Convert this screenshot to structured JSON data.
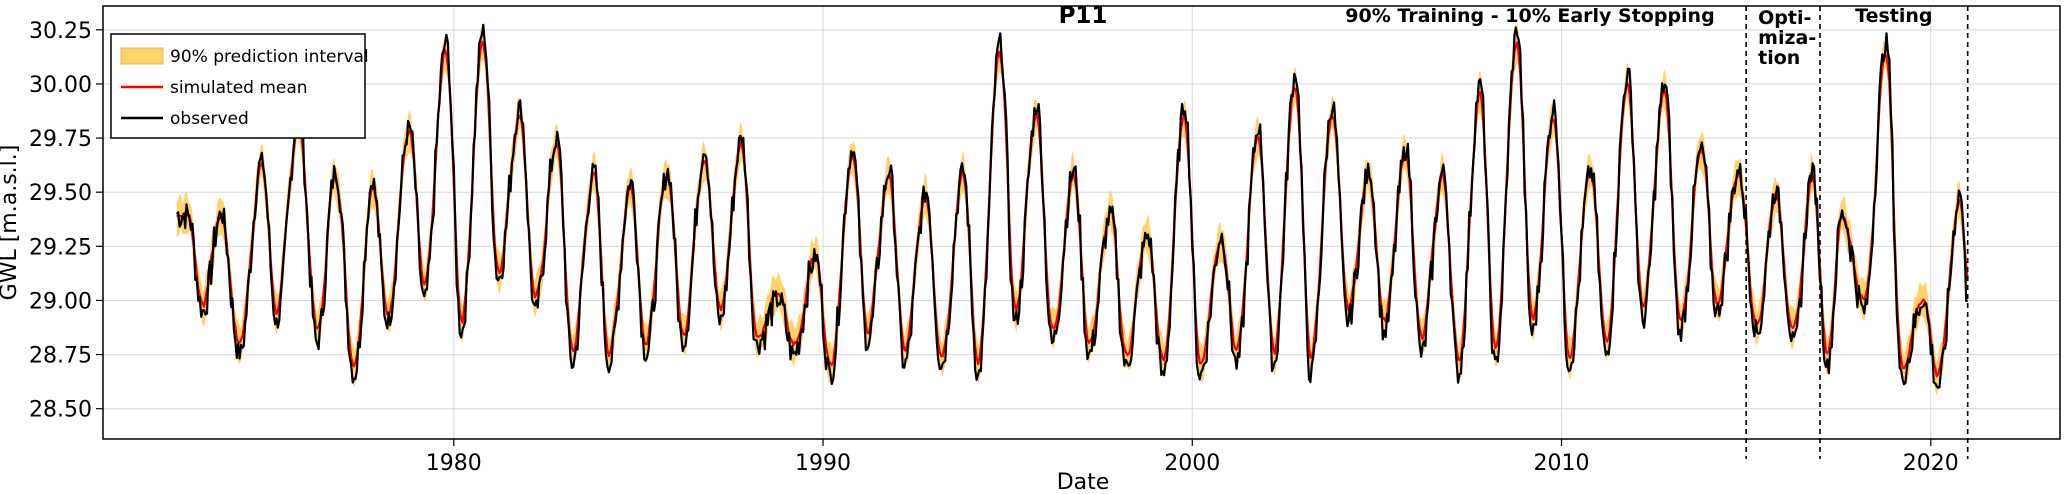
{
  "chart_data": {
    "type": "line",
    "title": "P11",
    "xlabel": "Date",
    "ylabel": "GWL [m.a.s.l.]",
    "xlim": [
      1970.5,
      2023.5
    ],
    "ylim": [
      28.36,
      30.36
    ],
    "x_ticks": [
      1980,
      1990,
      2000,
      2010,
      2020
    ],
    "y_ticks": [
      28.5,
      28.75,
      29.0,
      29.25,
      29.5,
      29.75,
      30.0,
      30.25
    ],
    "y_tick_labels": [
      "28.50",
      "28.75",
      "29.00",
      "29.25",
      "29.50",
      "29.75",
      "30.00",
      "30.25"
    ],
    "grid": true,
    "legend": {
      "position": "top-left",
      "entries": [
        {
          "label": "90% prediction interval",
          "color": "#FFD36B",
          "kind": "patch"
        },
        {
          "label": "simulated mean",
          "color": "#FF0000",
          "kind": "line"
        },
        {
          "label": "observed",
          "color": "#000000",
          "kind": "line"
        }
      ]
    },
    "regions": [
      {
        "label": "90% Training - 10% Early Stopping",
        "start": 1972.5,
        "end": 2015.0
      },
      {
        "label_lines": [
          "Opti-",
          "miza-",
          "tion"
        ],
        "start": 2015.0,
        "end": 2017.0
      },
      {
        "label": "Testing",
        "start": 2017.0,
        "end": 2021.0
      }
    ],
    "boundaries": [
      2015.0,
      2017.0,
      2021.0
    ],
    "series_colors": {
      "interval": "#FFD36B",
      "simulated": "#FF0000",
      "observed": "#000000"
    },
    "observed_annual": {
      "x": [
        1972.8,
        1973.2,
        1973.7,
        1974.2,
        1974.8,
        1975.2,
        1975.8,
        1976.3,
        1976.8,
        1977.3,
        1977.8,
        1978.2,
        1978.8,
        1979.2,
        1979.8,
        1980.2,
        1980.8,
        1981.2,
        1981.8,
        1982.2,
        1982.8,
        1983.2,
        1983.8,
        1984.2,
        1984.8,
        1985.2,
        1985.8,
        1986.2,
        1986.8,
        1987.2,
        1987.8,
        1988.2,
        1988.8,
        1989.2,
        1989.8,
        1990.2,
        1990.8,
        1991.2,
        1991.8,
        1992.2,
        1992.8,
        1993.2,
        1993.8,
        1994.2,
        1994.8,
        1995.2,
        1995.8,
        1996.2,
        1996.8,
        1997.2,
        1997.8,
        1998.2,
        1998.8,
        1999.2,
        1999.8,
        2000.2,
        2000.8,
        2001.2,
        2001.8,
        2002.2,
        2002.8,
        2003.2,
        2003.8,
        2004.2,
        2004.8,
        2005.2,
        2005.8,
        2006.2,
        2006.8,
        2007.2,
        2007.8,
        2008.2,
        2008.8,
        2009.2,
        2009.8,
        2010.2,
        2010.8,
        2011.2,
        2011.8,
        2012.2,
        2012.8,
        2013.2,
        2013.8,
        2014.2,
        2014.8,
        2015.3,
        2015.8,
        2016.3,
        2016.8,
        2017.2,
        2017.6,
        2018.2,
        2018.8,
        2019.2,
        2019.8,
        2020.2,
        2020.8
      ],
      "y": [
        29.4,
        28.95,
        29.4,
        28.75,
        29.65,
        28.9,
        29.85,
        28.8,
        29.6,
        28.65,
        29.55,
        28.9,
        29.8,
        29.0,
        30.2,
        28.85,
        30.25,
        29.1,
        29.9,
        28.95,
        29.75,
        28.7,
        29.6,
        28.7,
        29.55,
        28.75,
        29.6,
        28.8,
        29.7,
        28.9,
        29.75,
        28.8,
        29.0,
        28.75,
        29.2,
        28.65,
        29.7,
        28.8,
        29.6,
        28.7,
        29.5,
        28.7,
        29.6,
        28.65,
        30.2,
        28.9,
        29.9,
        28.8,
        29.6,
        28.75,
        29.4,
        28.7,
        29.3,
        28.65,
        29.9,
        28.65,
        29.3,
        28.7,
        29.8,
        28.7,
        30.05,
        28.65,
        29.9,
        28.9,
        29.6,
        28.85,
        29.7,
        28.75,
        29.6,
        28.65,
        30.0,
        28.7,
        30.25,
        28.85,
        29.9,
        28.7,
        29.6,
        28.75,
        30.05,
        28.9,
        30.0,
        28.85,
        29.7,
        28.95,
        29.6,
        28.85,
        29.5,
        28.8,
        29.6,
        28.7,
        29.4,
        28.95,
        30.2,
        28.65,
        29.0,
        28.6,
        29.5
      ],
      "ends": [
        [
          1972.5,
          29.4
        ],
        [
          2021.0,
          29.0
        ]
      ]
    }
  }
}
